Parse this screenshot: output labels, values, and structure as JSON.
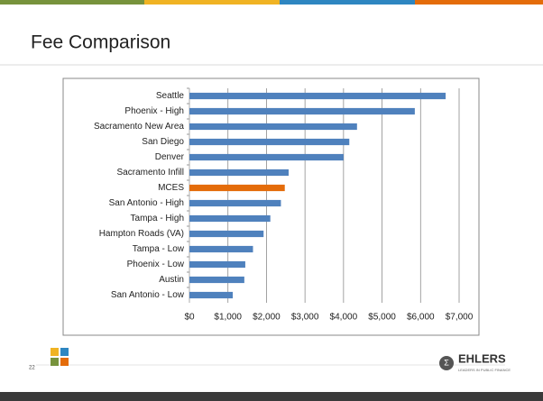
{
  "chart_data": {
    "type": "bar",
    "orientation": "horizontal",
    "title": "Fee Comparison",
    "categories": [
      "Seattle",
      "Phoenix - High",
      "Sacramento New Area",
      "San Diego",
      "Denver",
      "Sacramento  Infill",
      "MCES",
      "San Antonio - High",
      "Tampa - High",
      "Hampton Roads (VA)",
      "Tampa - Low",
      "Phoenix - Low",
      "Austin",
      "San Antonio - Low"
    ],
    "values": [
      6650,
      5850,
      4350,
      4150,
      4000,
      2575,
      2475,
      2375,
      2100,
      1925,
      1650,
      1450,
      1425,
      1125
    ],
    "colors": [
      "#4f81bd",
      "#4f81bd",
      "#4f81bd",
      "#4f81bd",
      "#4f81bd",
      "#4f81bd",
      "#e46c0a",
      "#4f81bd",
      "#4f81bd",
      "#4f81bd",
      "#4f81bd",
      "#4f81bd",
      "#4f81bd",
      "#4f81bd"
    ],
    "xlim": [
      0,
      7000
    ],
    "xticks": [
      {
        "value": 0,
        "label": "$0"
      },
      {
        "value": 1000,
        "label": "$1,000"
      },
      {
        "value": 2000,
        "label": "$2,000"
      },
      {
        "value": 3000,
        "label": "$3,000"
      },
      {
        "value": 4000,
        "label": "$4,000"
      },
      {
        "value": 5000,
        "label": "$5,000"
      },
      {
        "value": 6000,
        "label": "$6,000"
      },
      {
        "value": 7000,
        "label": "$7,000"
      }
    ],
    "grid": true
  },
  "page_number": "22",
  "logo": {
    "name": "EHLERS",
    "tagline": "LEADERS IN PUBLIC FINANCE"
  }
}
